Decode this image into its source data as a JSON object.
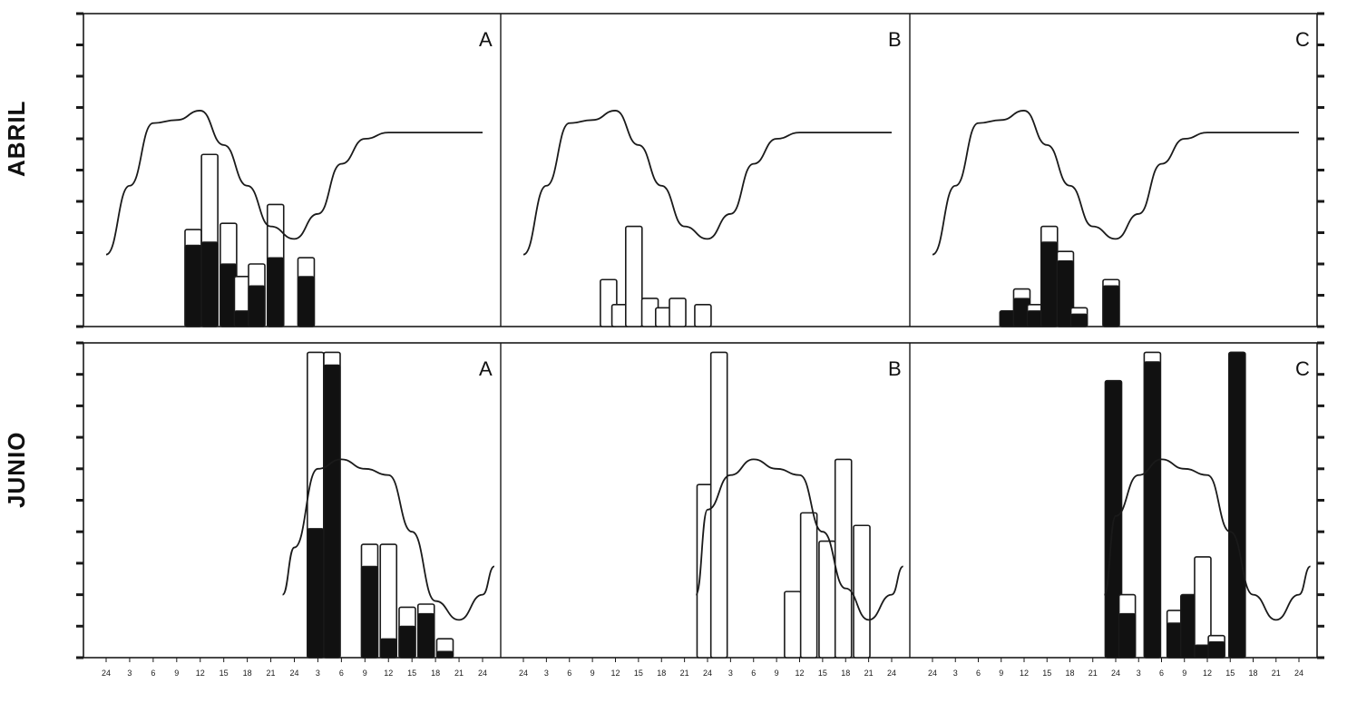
{
  "figure": {
    "rows": [
      {
        "label": "ABRIL"
      },
      {
        "label": "JUNIO"
      }
    ],
    "columns": [
      "A",
      "B",
      "C"
    ],
    "x_ticks": [
      "24",
      "3",
      "6",
      "9",
      "12",
      "15",
      "18",
      "21",
      "24",
      "3",
      "6",
      "9",
      "12",
      "15",
      "18",
      "21",
      "24"
    ],
    "colors": {
      "dark": "#111111",
      "light": "#ffffff",
      "ink": "#1a1a1a"
    }
  },
  "chart_data": [
    {
      "type": "bar",
      "row": "ABRIL",
      "panel": "A",
      "ylim": [
        0,
        10
      ],
      "line": {
        "x": [
          0,
          1,
          2,
          3,
          4,
          5,
          6,
          7,
          8,
          9,
          10,
          11,
          12,
          13,
          14,
          15,
          16
        ],
        "y": [
          2.3,
          4.5,
          6.5,
          6.6,
          6.9,
          5.8,
          4.5,
          3.2,
          2.8,
          3.6,
          5.2,
          6.0,
          6.2,
          6.2,
          6.2,
          6.2,
          6.2
        ]
      },
      "bars": [
        {
          "x": 3.7,
          "value": 3.1,
          "dark": 2.6
        },
        {
          "x": 4.4,
          "value": 5.5,
          "dark": 2.7
        },
        {
          "x": 5.2,
          "value": 3.3,
          "dark": 2.0
        },
        {
          "x": 5.8,
          "value": 1.6,
          "dark": 0.5
        },
        {
          "x": 6.4,
          "value": 2.0,
          "dark": 1.3
        },
        {
          "x": 7.2,
          "value": 3.9,
          "dark": 2.2
        },
        {
          "x": 8.5,
          "value": 2.2,
          "dark": 1.6
        }
      ]
    },
    {
      "type": "bar",
      "row": "ABRIL",
      "panel": "B",
      "ylim": [
        0,
        10
      ],
      "line": {
        "x": [
          0,
          1,
          2,
          3,
          4,
          5,
          6,
          7,
          8,
          9,
          10,
          11,
          12,
          13,
          14,
          15,
          16
        ],
        "y": [
          2.3,
          4.5,
          6.5,
          6.6,
          6.9,
          5.8,
          4.5,
          3.2,
          2.8,
          3.6,
          5.2,
          6.0,
          6.2,
          6.2,
          6.2,
          6.2,
          6.2
        ]
      },
      "bars": [
        {
          "x": 3.7,
          "value": 1.5,
          "dark": 0
        },
        {
          "x": 4.2,
          "value": 0.7,
          "dark": 0
        },
        {
          "x": 4.8,
          "value": 3.2,
          "dark": 0
        },
        {
          "x": 5.5,
          "value": 0.9,
          "dark": 0
        },
        {
          "x": 6.1,
          "value": 0.6,
          "dark": 0
        },
        {
          "x": 6.7,
          "value": 0.9,
          "dark": 0
        },
        {
          "x": 7.8,
          "value": 0.7,
          "dark": 0
        }
      ]
    },
    {
      "type": "bar",
      "row": "ABRIL",
      "panel": "C",
      "ylim": [
        0,
        10
      ],
      "line": {
        "x": [
          0,
          1,
          2,
          3,
          4,
          5,
          6,
          7,
          8,
          9,
          10,
          11,
          12,
          13,
          14,
          15,
          16
        ],
        "y": [
          2.3,
          4.5,
          6.5,
          6.6,
          6.9,
          5.8,
          4.5,
          3.2,
          2.8,
          3.6,
          5.2,
          6.0,
          6.2,
          6.2,
          6.2,
          6.2,
          6.2
        ]
      },
      "bars": [
        {
          "x": 3.3,
          "value": 0.5,
          "dark": 0.5
        },
        {
          "x": 3.9,
          "value": 1.2,
          "dark": 0.9
        },
        {
          "x": 4.5,
          "value": 0.7,
          "dark": 0.5
        },
        {
          "x": 5.1,
          "value": 3.2,
          "dark": 2.7
        },
        {
          "x": 5.8,
          "value": 2.4,
          "dark": 2.1
        },
        {
          "x": 6.4,
          "value": 0.6,
          "dark": 0.4
        },
        {
          "x": 7.8,
          "value": 1.5,
          "dark": 1.3
        }
      ]
    },
    {
      "type": "bar",
      "row": "JUNIO",
      "panel": "A",
      "ylim": [
        0,
        10
      ],
      "line": {
        "x": [
          7.5,
          8,
          9,
          10,
          11,
          12,
          13,
          14,
          15,
          16,
          16.5
        ],
        "y": [
          2.0,
          3.5,
          6.0,
          6.3,
          6.0,
          5.8,
          4.0,
          1.8,
          1.2,
          2.0,
          2.9
        ]
      },
      "bars": [
        {
          "x": 8.9,
          "value": 9.7,
          "dark": 4.1
        },
        {
          "x": 9.6,
          "value": 9.7,
          "dark": 9.3
        },
        {
          "x": 11.2,
          "value": 3.6,
          "dark": 2.9
        },
        {
          "x": 12.0,
          "value": 3.6,
          "dark": 0.6
        },
        {
          "x": 12.8,
          "value": 1.6,
          "dark": 1.0
        },
        {
          "x": 13.6,
          "value": 1.7,
          "dark": 1.4
        },
        {
          "x": 14.4,
          "value": 0.6,
          "dark": 0.2
        }
      ]
    },
    {
      "type": "bar",
      "row": "JUNIO",
      "panel": "B",
      "ylim": [
        0,
        10
      ],
      "line": {
        "x": [
          7.5,
          8,
          9,
          10,
          11,
          12,
          13,
          14,
          15,
          16,
          16.5
        ],
        "y": [
          2.0,
          4.7,
          5.8,
          6.3,
          6.0,
          5.8,
          4.0,
          2.2,
          1.2,
          2.0,
          2.9
        ]
      },
      "bars": [
        {
          "x": 7.9,
          "value": 5.5,
          "dark": 0
        },
        {
          "x": 8.5,
          "value": 9.7,
          "dark": 0
        },
        {
          "x": 11.7,
          "value": 2.1,
          "dark": 0
        },
        {
          "x": 12.4,
          "value": 4.6,
          "dark": 0
        },
        {
          "x": 13.2,
          "value": 3.7,
          "dark": 0
        },
        {
          "x": 13.9,
          "value": 6.3,
          "dark": 0
        },
        {
          "x": 14.7,
          "value": 4.2,
          "dark": 0
        }
      ]
    },
    {
      "type": "bar",
      "row": "JUNIO",
      "panel": "C",
      "ylim": [
        0,
        10
      ],
      "line": {
        "x": [
          7.5,
          8,
          9,
          10,
          11,
          12,
          13,
          14,
          15,
          16,
          16.5
        ],
        "y": [
          2.0,
          4.5,
          5.8,
          6.3,
          6.0,
          5.8,
          4.0,
          2.0,
          1.2,
          2.0,
          2.9
        ]
      },
      "bars": [
        {
          "x": 7.9,
          "value": 8.8,
          "dark": 8.8
        },
        {
          "x": 8.5,
          "value": 2.0,
          "dark": 1.4
        },
        {
          "x": 9.6,
          "value": 9.7,
          "dark": 9.4
        },
        {
          "x": 10.6,
          "value": 1.5,
          "dark": 1.1
        },
        {
          "x": 11.2,
          "value": 2.0,
          "dark": 2.0
        },
        {
          "x": 11.8,
          "value": 3.2,
          "dark": 0.4
        },
        {
          "x": 12.4,
          "value": 0.7,
          "dark": 0.5
        },
        {
          "x": 13.3,
          "value": 9.7,
          "dark": 9.7
        }
      ]
    }
  ]
}
